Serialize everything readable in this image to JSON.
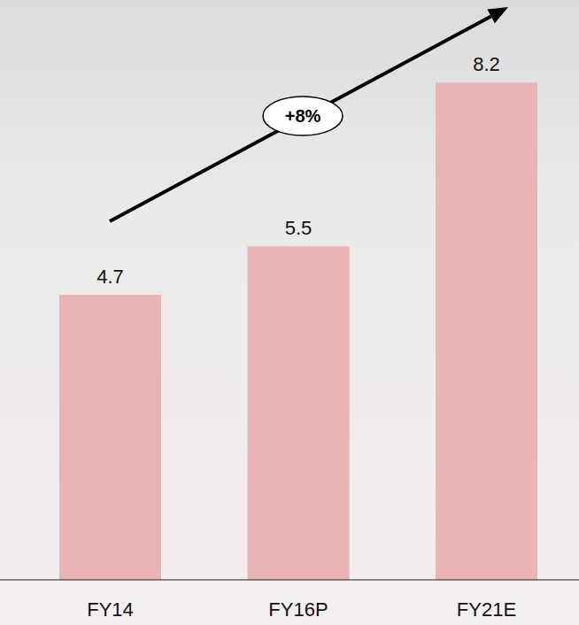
{
  "chart_data": {
    "type": "bar",
    "categories": [
      "FY14",
      "FY16P",
      "FY21E"
    ],
    "values": [
      4.7,
      5.5,
      8.2
    ],
    "color": "#e8b4b4",
    "ylim": [
      0,
      9
    ],
    "data_labels": true,
    "tick_labels": "x",
    "annotation": "+8%"
  }
}
